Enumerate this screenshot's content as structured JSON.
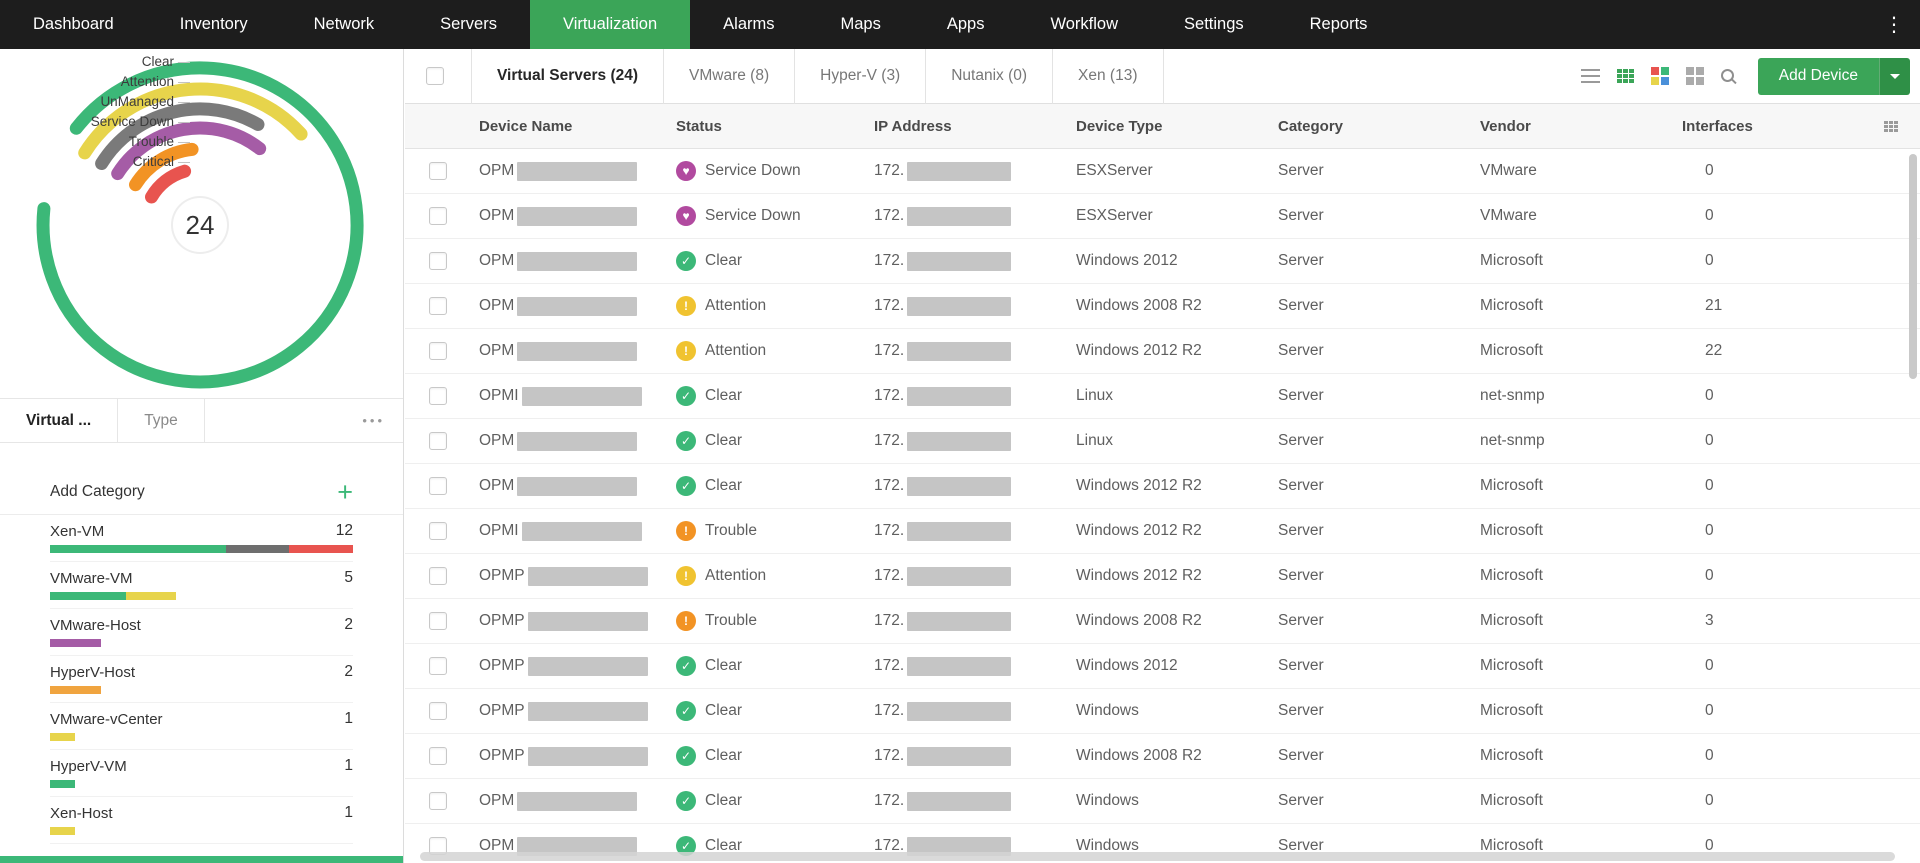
{
  "nav": {
    "menu_icon": "⋮",
    "items": [
      {
        "label": "Dashboard",
        "active": false
      },
      {
        "label": "Inventory",
        "active": false
      },
      {
        "label": "Network",
        "active": false
      },
      {
        "label": "Servers",
        "active": false
      },
      {
        "label": "Virtualization",
        "active": true
      },
      {
        "label": "Alarms",
        "active": false
      },
      {
        "label": "Maps",
        "active": false
      },
      {
        "label": "Apps",
        "active": false
      },
      {
        "label": "Workflow",
        "active": false
      },
      {
        "label": "Settings",
        "active": false
      },
      {
        "label": "Reports",
        "active": false
      }
    ]
  },
  "sidebar": {
    "status_gauge": {
      "total": "24",
      "legend": [
        "Clear",
        "Attention",
        "UnManaged",
        "Service Down",
        "Trouble",
        "Critical"
      ],
      "arcs": [
        {
          "label": "Clear",
          "color": "#3CB878",
          "start": -52,
          "sweep": 328
        },
        {
          "label": "Attention",
          "color": "#E7D44B",
          "start": -58,
          "sweep": 106
        },
        {
          "label": "UnManaged",
          "color": "#7A7A7A",
          "start": -58,
          "sweep": 88
        },
        {
          "label": "Service Down",
          "color": "#A55CA6",
          "start": -58,
          "sweep": 96
        },
        {
          "label": "Trouble",
          "color": "#F29324",
          "start": -58,
          "sweep": 52
        },
        {
          "label": "Critical",
          "color": "#E8544F",
          "start": -60,
          "sweep": 44
        }
      ]
    },
    "tabs": [
      {
        "label": "Virtual ...",
        "active": true
      },
      {
        "label": "Type",
        "active": false
      }
    ],
    "tabs_more": "•••",
    "add_category_label": "Add Category",
    "add_icon": "+",
    "categories": [
      {
        "label": "Xen-VM",
        "count": "12",
        "width_pct": 100,
        "segments": [
          [
            "#3CB878",
            58
          ],
          [
            "#6E6E6E",
            21
          ],
          [
            "#E8544F",
            21
          ]
        ]
      },
      {
        "label": "VMware-VM",
        "count": "5",
        "width_pct": 41.7,
        "segments": [
          [
            "#3CB878",
            60
          ],
          [
            "#E7D44B",
            40
          ]
        ]
      },
      {
        "label": "VMware-Host",
        "count": "2",
        "width_pct": 16.7,
        "segments": [
          [
            "#A55CA6",
            100
          ]
        ]
      },
      {
        "label": "HyperV-Host",
        "count": "2",
        "width_pct": 16.7,
        "segments": [
          [
            "#F0A43F",
            100
          ]
        ]
      },
      {
        "label": "VMware-vCenter",
        "count": "1",
        "width_pct": 8.3,
        "segments": [
          [
            "#E7D44B",
            100
          ]
        ]
      },
      {
        "label": "HyperV-VM",
        "count": "1",
        "width_pct": 8.3,
        "segments": [
          [
            "#3CB878",
            100
          ]
        ]
      },
      {
        "label": "Xen-Host",
        "count": "1",
        "width_pct": 8.3,
        "segments": [
          [
            "#E7D44B",
            100
          ]
        ]
      }
    ]
  },
  "main": {
    "tabs": [
      {
        "label": "Virtual Servers (24)",
        "active": true
      },
      {
        "label": "VMware (8)",
        "active": false
      },
      {
        "label": "Hyper-V (3)",
        "active": false
      },
      {
        "label": "Nutanix (0)",
        "active": false
      },
      {
        "label": "Xen (13)",
        "active": false
      }
    ],
    "toolbar": {
      "add_device_label": "Add Device"
    },
    "table": {
      "columns": [
        "Device Name",
        "Status",
        "IP Address",
        "Device Type",
        "Category",
        "Vendor",
        "Interfaces"
      ],
      "ip_prefix": "172.",
      "rows": [
        {
          "name_prefix": "OPM",
          "status": "Service Down",
          "status_key": "service_down",
          "device_type": "ESXServer",
          "category": "Server",
          "vendor": "VMware",
          "interfaces": "0"
        },
        {
          "name_prefix": "OPM",
          "status": "Service Down",
          "status_key": "service_down",
          "device_type": "ESXServer",
          "category": "Server",
          "vendor": "VMware",
          "interfaces": "0"
        },
        {
          "name_prefix": "OPM",
          "status": "Clear",
          "status_key": "clear",
          "device_type": "Windows 2012",
          "category": "Server",
          "vendor": "Microsoft",
          "interfaces": "0"
        },
        {
          "name_prefix": "OPM",
          "status": "Attention",
          "status_key": "attention",
          "device_type": "Windows 2008 R2",
          "category": "Server",
          "vendor": "Microsoft",
          "interfaces": "21"
        },
        {
          "name_prefix": "OPM",
          "status": "Attention",
          "status_key": "attention",
          "device_type": "Windows 2012 R2",
          "category": "Server",
          "vendor": "Microsoft",
          "interfaces": "22"
        },
        {
          "name_prefix": "OPMI",
          "status": "Clear",
          "status_key": "clear",
          "device_type": "Linux",
          "category": "Server",
          "vendor": "net-snmp",
          "interfaces": "0"
        },
        {
          "name_prefix": "OPM",
          "status": "Clear",
          "status_key": "clear",
          "device_type": "Linux",
          "category": "Server",
          "vendor": "net-snmp",
          "interfaces": "0"
        },
        {
          "name_prefix": "OPM",
          "status": "Clear",
          "status_key": "clear",
          "device_type": "Windows 2012 R2",
          "category": "Server",
          "vendor": "Microsoft",
          "interfaces": "0"
        },
        {
          "name_prefix": "OPMI",
          "status": "Trouble",
          "status_key": "trouble",
          "device_type": "Windows 2012 R2",
          "category": "Server",
          "vendor": "Microsoft",
          "interfaces": "0"
        },
        {
          "name_prefix": "OPMP",
          "status": "Attention",
          "status_key": "attention",
          "device_type": "Windows 2012 R2",
          "category": "Server",
          "vendor": "Microsoft",
          "interfaces": "0"
        },
        {
          "name_prefix": "OPMP",
          "status": "Trouble",
          "status_key": "trouble",
          "device_type": "Windows 2008 R2",
          "category": "Server",
          "vendor": "Microsoft",
          "interfaces": "3"
        },
        {
          "name_prefix": "OPMP",
          "status": "Clear",
          "status_key": "clear",
          "device_type": "Windows 2012",
          "category": "Server",
          "vendor": "Microsoft",
          "interfaces": "0"
        },
        {
          "name_prefix": "OPMP",
          "status": "Clear",
          "status_key": "clear",
          "device_type": "Windows",
          "category": "Server",
          "vendor": "Microsoft",
          "interfaces": "0"
        },
        {
          "name_prefix": "OPMP",
          "status": "Clear",
          "status_key": "clear",
          "device_type": "Windows 2008 R2",
          "category": "Server",
          "vendor": "Microsoft",
          "interfaces": "0"
        },
        {
          "name_prefix": "OPM",
          "status": "Clear",
          "status_key": "clear",
          "device_type": "Windows",
          "category": "Server",
          "vendor": "Microsoft",
          "interfaces": "0"
        },
        {
          "name_prefix": "OPM",
          "status": "Clear",
          "status_key": "clear",
          "device_type": "Windows",
          "category": "Server",
          "vendor": "Microsoft",
          "interfaces": "0"
        }
      ]
    }
  },
  "status_colors": {
    "clear": "#3CB878",
    "attention": "#F0C330",
    "trouble": "#F29324",
    "service_down": "#B14A9F"
  },
  "status_glyphs": {
    "clear": "✓",
    "attention": "!",
    "trouble": "!",
    "service_down": "♥"
  },
  "colors": {
    "accent_green": "#3BA558",
    "nav_bg": "#1D1D1D",
    "redaction_gray": "#C5C5C5"
  }
}
